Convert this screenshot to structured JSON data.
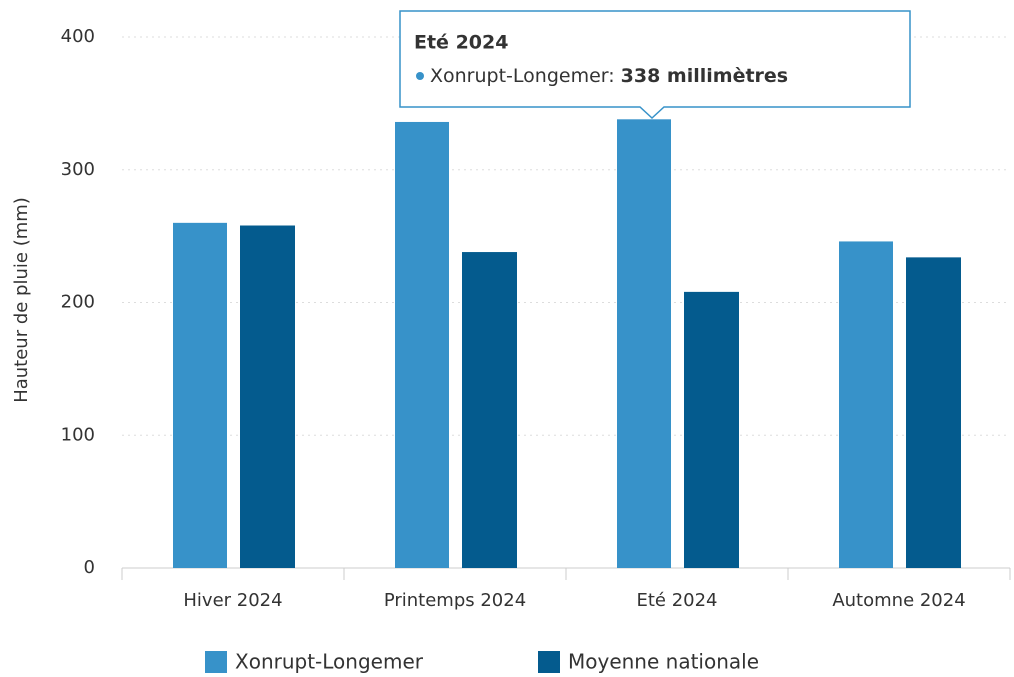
{
  "chart_data": {
    "type": "bar",
    "y_label": "Hauteur de pluie (mm)",
    "categories": [
      "Hiver 2024",
      "Printemps 2024",
      "Eté 2024",
      "Automne 2024"
    ],
    "series": [
      {
        "name": "Xonrupt-Longemer",
        "color": "#3792c9",
        "values": [
          260,
          336,
          338,
          246
        ]
      },
      {
        "name": "Moyenne nationale",
        "color": "#045b8e",
        "values": [
          258,
          238,
          208,
          234
        ]
      }
    ],
    "ylim": [
      0,
      400
    ],
    "yticks": [
      0,
      100,
      200,
      300,
      400
    ],
    "grid": true,
    "tooltip": {
      "title": "Eté 2024",
      "text": "Xonrupt-Longemer:",
      "value": "338 millimètres"
    }
  }
}
